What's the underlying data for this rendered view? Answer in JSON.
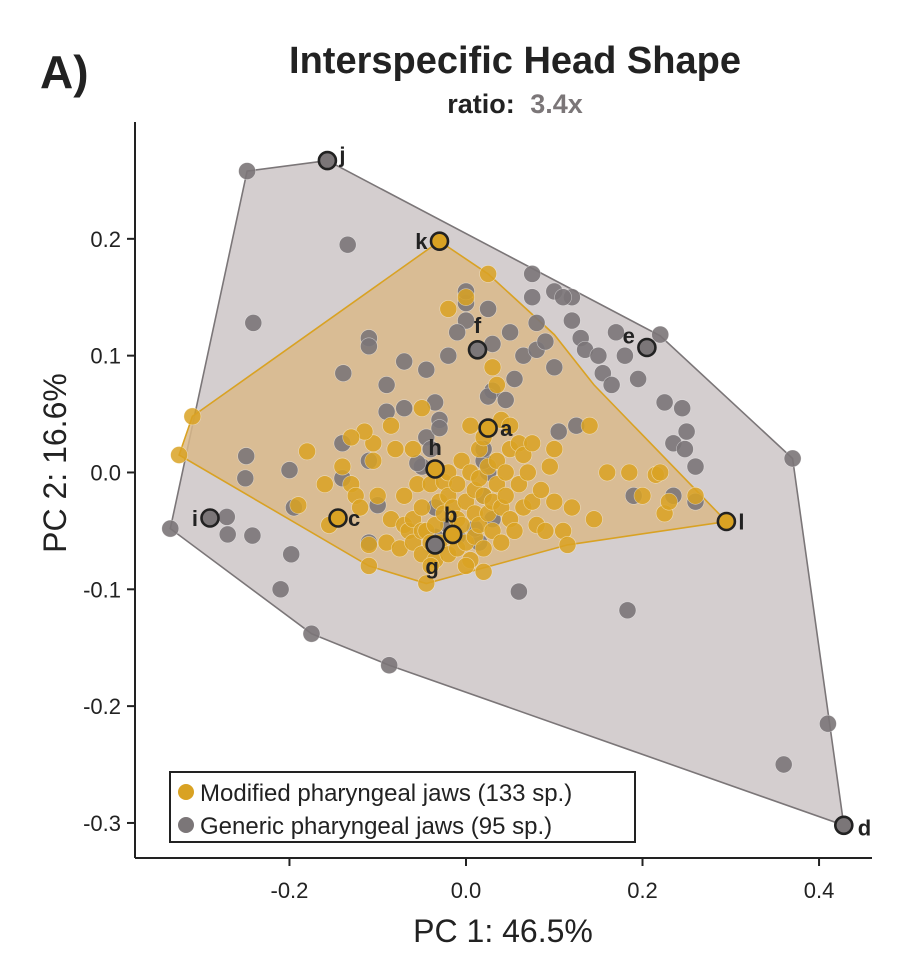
{
  "panel_label": "A)",
  "title": "Interspecific Head Shape",
  "subtitle": {
    "prefix": "ratio:",
    "value": "3.4x"
  },
  "colors": {
    "modified": "#D9A223",
    "generic": "#7B7678",
    "generic_hull_fill": "#D4CECF",
    "modified_hull_fill": "#D9B98A",
    "axis": "#222222"
  },
  "chart_data": {
    "type": "scatter",
    "xlabel": "PC 1: 46.5%",
    "ylabel": "PC 2: 16.6%",
    "xlim": [
      -0.375,
      0.46
    ],
    "ylim": [
      -0.33,
      0.3
    ],
    "xticks": [
      -0.2,
      0.0,
      0.2,
      0.4
    ],
    "xtick_labels": [
      "-0.2",
      "0.0",
      "0.2",
      "0.4"
    ],
    "yticks": [
      -0.3,
      -0.2,
      -0.1,
      0.0,
      0.1,
      0.2
    ],
    "ytick_labels": [
      "-0.3",
      "-0.2",
      "-0.1",
      "0.0",
      "0.1",
      "0.2"
    ],
    "legend": {
      "placement": "bottom-left",
      "entries": [
        {
          "label": "Modified pharyngeal jaws (133 sp.)",
          "series": "modified"
        },
        {
          "label": "Generic pharyngeal jaws (95 sp.)",
          "series": "generic"
        }
      ]
    },
    "series": [
      {
        "name": "Generic pharyngeal jaws (95 sp.)",
        "key": "generic",
        "hull": [
          [
            -0.335,
            -0.048
          ],
          [
            -0.248,
            0.258
          ],
          [
            -0.157,
            0.267
          ],
          [
            0.22,
            0.117
          ],
          [
            0.37,
            0.012
          ],
          [
            0.428,
            -0.302
          ],
          [
            -0.087,
            -0.165
          ],
          [
            -0.175,
            -0.138
          ]
        ],
        "points": [
          [
            -0.248,
            0.258
          ],
          [
            -0.157,
            0.267
          ],
          [
            -0.134,
            0.195
          ],
          [
            -0.241,
            0.128
          ],
          [
            -0.139,
            0.085
          ],
          [
            -0.335,
            -0.048
          ],
          [
            -0.271,
            -0.038
          ],
          [
            -0.27,
            -0.053
          ],
          [
            -0.242,
            -0.054
          ],
          [
            -0.25,
            -0.005
          ],
          [
            -0.249,
            0.014
          ],
          [
            -0.2,
            0.002
          ],
          [
            -0.195,
            -0.03
          ],
          [
            -0.198,
            -0.07
          ],
          [
            -0.21,
            -0.1
          ],
          [
            -0.175,
            -0.138
          ],
          [
            -0.087,
            -0.165
          ],
          [
            -0.11,
            -0.06
          ],
          [
            -0.1,
            -0.028
          ],
          [
            -0.11,
            0.01
          ],
          [
            -0.14,
            -0.005
          ],
          [
            -0.14,
            0.025
          ],
          [
            -0.11,
            0.115
          ],
          [
            -0.11,
            0.108
          ],
          [
            -0.07,
            0.095
          ],
          [
            -0.09,
            0.075
          ],
          [
            -0.07,
            0.055
          ],
          [
            -0.09,
            0.052
          ],
          [
            -0.045,
            0.088
          ],
          [
            -0.02,
            0.1
          ],
          [
            0.0,
            0.13
          ],
          [
            -0.01,
            0.12
          ],
          [
            0.0,
            0.145
          ],
          [
            0.0,
            0.155
          ],
          [
            0.025,
            0.14
          ],
          [
            0.03,
            0.11
          ],
          [
            0.05,
            0.12
          ],
          [
            0.055,
            0.08
          ],
          [
            0.03,
            0.07
          ],
          [
            0.025,
            0.065
          ],
          [
            0.045,
            0.062
          ],
          [
            0.065,
            0.1
          ],
          [
            0.08,
            0.105
          ],
          [
            0.075,
            0.15
          ],
          [
            0.075,
            0.17
          ],
          [
            0.08,
            0.128
          ],
          [
            0.09,
            0.112
          ],
          [
            0.1,
            0.09
          ],
          [
            0.1,
            0.155
          ],
          [
            0.12,
            0.15
          ],
          [
            0.11,
            0.15
          ],
          [
            0.13,
            0.115
          ],
          [
            0.12,
            0.13
          ],
          [
            0.135,
            0.105
          ],
          [
            0.155,
            0.085
          ],
          [
            0.15,
            0.1
          ],
          [
            0.165,
            0.075
          ],
          [
            0.18,
            0.1
          ],
          [
            0.17,
            0.12
          ],
          [
            0.195,
            0.08
          ],
          [
            0.22,
            0.118
          ],
          [
            0.225,
            0.06
          ],
          [
            0.245,
            0.055
          ],
          [
            0.25,
            0.035
          ],
          [
            0.235,
            0.025
          ],
          [
            0.248,
            0.02
          ],
          [
            0.26,
            0.005
          ],
          [
            0.26,
            -0.025
          ],
          [
            0.235,
            -0.02
          ],
          [
            0.19,
            -0.02
          ],
          [
            0.183,
            -0.118
          ],
          [
            0.125,
            0.04
          ],
          [
            0.105,
            0.035
          ],
          [
            0.37,
            0.012
          ],
          [
            0.41,
            -0.215
          ],
          [
            0.36,
            -0.25
          ],
          [
            0.06,
            -0.102
          ],
          [
            0.03,
            -0.04
          ],
          [
            0.015,
            -0.06
          ],
          [
            -0.035,
            -0.03
          ],
          [
            -0.05,
            0.005
          ],
          [
            -0.055,
            0.008
          ],
          [
            -0.045,
            0.03
          ],
          [
            -0.03,
            0.045
          ],
          [
            -0.035,
            0.06
          ],
          [
            -0.03,
            0.038
          ],
          [
            -0.04,
            0.02
          ],
          [
            -0.035,
            -0.055
          ],
          [
            -0.02,
            -0.045
          ],
          [
            -0.01,
            -0.055
          ],
          [
            0.01,
            -0.048
          ],
          [
            0.02,
            -0.02
          ],
          [
            0.025,
            0.0
          ],
          [
            0.02,
            0.01
          ],
          [
            0.02,
            0.02
          ]
        ]
      },
      {
        "name": "Modified pharyngeal jaws (133 sp.)",
        "key": "modified",
        "hull": [
          [
            -0.325,
            0.015
          ],
          [
            -0.31,
            0.048
          ],
          [
            -0.03,
            0.198
          ],
          [
            0.025,
            0.17
          ],
          [
            0.1,
            0.118
          ],
          [
            0.145,
            0.075
          ],
          [
            0.295,
            -0.042
          ],
          [
            0.115,
            -0.062
          ],
          [
            -0.045,
            -0.095
          ],
          [
            -0.11,
            -0.08
          ]
        ],
        "points": [
          [
            -0.325,
            0.015
          ],
          [
            -0.31,
            0.048
          ],
          [
            -0.19,
            -0.028
          ],
          [
            -0.18,
            0.018
          ],
          [
            -0.155,
            -0.045
          ],
          [
            -0.14,
            0.005
          ],
          [
            -0.13,
            -0.01
          ],
          [
            -0.125,
            -0.02
          ],
          [
            -0.12,
            -0.03
          ],
          [
            -0.11,
            -0.08
          ],
          [
            -0.11,
            -0.062
          ],
          [
            -0.1,
            -0.02
          ],
          [
            -0.105,
            0.01
          ],
          [
            -0.105,
            0.025
          ],
          [
            -0.115,
            0.035
          ],
          [
            -0.09,
            -0.06
          ],
          [
            -0.085,
            -0.04
          ],
          [
            -0.075,
            -0.065
          ],
          [
            -0.07,
            -0.045
          ],
          [
            -0.07,
            -0.02
          ],
          [
            -0.065,
            -0.05
          ],
          [
            -0.06,
            -0.04
          ],
          [
            -0.06,
            -0.06
          ],
          [
            -0.055,
            -0.01
          ],
          [
            -0.05,
            -0.07
          ],
          [
            -0.05,
            -0.05
          ],
          [
            -0.05,
            -0.03
          ],
          [
            -0.045,
            -0.095
          ],
          [
            -0.045,
            -0.05
          ],
          [
            -0.04,
            -0.01
          ],
          [
            -0.04,
            -0.06
          ],
          [
            -0.035,
            -0.045
          ],
          [
            -0.035,
            -0.075
          ],
          [
            -0.03,
            -0.025
          ],
          [
            -0.03,
            -0.06
          ],
          [
            -0.025,
            -0.035
          ],
          [
            -0.025,
            -0.008
          ],
          [
            -0.02,
            0.0
          ],
          [
            -0.02,
            -0.02
          ],
          [
            -0.02,
            -0.07
          ],
          [
            -0.015,
            -0.055
          ],
          [
            -0.015,
            -0.03
          ],
          [
            -0.01,
            -0.01
          ],
          [
            -0.01,
            -0.04
          ],
          [
            -0.01,
            -0.065
          ],
          [
            -0.005,
            0.01
          ],
          [
            -0.005,
            -0.045
          ],
          [
            0.0,
            -0.025
          ],
          [
            0.0,
            -0.06
          ],
          [
            0.005,
            0.0
          ],
          [
            0.005,
            -0.075
          ],
          [
            0.01,
            -0.015
          ],
          [
            0.01,
            -0.035
          ],
          [
            0.01,
            -0.055
          ],
          [
            0.015,
            0.02
          ],
          [
            0.015,
            -0.005
          ],
          [
            0.015,
            -0.045
          ],
          [
            0.02,
            -0.065
          ],
          [
            0.02,
            -0.02
          ],
          [
            0.025,
            0.005
          ],
          [
            0.025,
            -0.035
          ],
          [
            0.03,
            -0.025
          ],
          [
            0.03,
            -0.05
          ],
          [
            0.035,
            0.01
          ],
          [
            0.035,
            -0.01
          ],
          [
            0.04,
            -0.03
          ],
          [
            0.04,
            -0.06
          ],
          [
            0.045,
            0.0
          ],
          [
            0.045,
            -0.02
          ],
          [
            0.05,
            -0.04
          ],
          [
            0.05,
            0.02
          ],
          [
            0.055,
            -0.05
          ],
          [
            0.06,
            -0.01
          ],
          [
            0.065,
            -0.03
          ],
          [
            0.07,
            0.0
          ],
          [
            0.075,
            -0.025
          ],
          [
            0.08,
            -0.045
          ],
          [
            0.085,
            -0.015
          ],
          [
            0.09,
            -0.05
          ],
          [
            0.095,
            0.005
          ],
          [
            0.1,
            -0.025
          ],
          [
            0.11,
            -0.05
          ],
          [
            0.115,
            -0.062
          ],
          [
            0.12,
            -0.03
          ],
          [
            0.14,
            0.04
          ],
          [
            0.145,
            -0.04
          ],
          [
            0.16,
            0.0
          ],
          [
            0.185,
            0.0
          ],
          [
            0.2,
            -0.02
          ],
          [
            0.215,
            -0.002
          ],
          [
            0.22,
            0.0
          ],
          [
            0.225,
            -0.035
          ],
          [
            0.23,
            -0.025
          ],
          [
            0.26,
            -0.02
          ],
          [
            0.295,
            -0.042
          ],
          [
            -0.03,
            0.198
          ],
          [
            -0.02,
            0.14
          ],
          [
            0.0,
            0.15
          ],
          [
            0.025,
            0.17
          ],
          [
            0.03,
            0.09
          ],
          [
            0.035,
            0.075
          ],
          [
            0.04,
            0.045
          ],
          [
            0.05,
            0.04
          ],
          [
            0.06,
            0.025
          ],
          [
            0.1,
            0.02
          ],
          [
            -0.13,
            0.03
          ],
          [
            -0.085,
            0.04
          ],
          [
            -0.08,
            0.02
          ],
          [
            -0.16,
            -0.01
          ],
          [
            0.005,
            0.04
          ],
          [
            0.02,
            0.03
          ],
          [
            -0.06,
            0.02
          ],
          [
            -0.04,
            -0.08
          ],
          [
            0.0,
            -0.08
          ],
          [
            0.02,
            -0.085
          ],
          [
            -0.05,
            0.055
          ],
          [
            0.065,
            0.015
          ],
          [
            0.075,
            0.025
          ]
        ]
      }
    ],
    "labeled_points": [
      {
        "label": "a",
        "series": "modified",
        "x": 0.025,
        "y": 0.038
      },
      {
        "label": "b",
        "series": "modified",
        "x": -0.015,
        "y": -0.053
      },
      {
        "label": "c",
        "series": "modified",
        "x": -0.145,
        "y": -0.039
      },
      {
        "label": "d",
        "series": "generic",
        "x": 0.428,
        "y": -0.302
      },
      {
        "label": "e",
        "series": "generic",
        "x": 0.205,
        "y": 0.107
      },
      {
        "label": "f",
        "series": "generic",
        "x": 0.013,
        "y": 0.105
      },
      {
        "label": "g",
        "series": "generic",
        "x": -0.035,
        "y": -0.062
      },
      {
        "label": "h",
        "series": "modified",
        "x": -0.035,
        "y": 0.003
      },
      {
        "label": "i",
        "series": "generic",
        "x": -0.29,
        "y": -0.039
      },
      {
        "label": "j",
        "series": "generic",
        "x": -0.157,
        "y": 0.267
      },
      {
        "label": "k",
        "series": "modified",
        "x": -0.03,
        "y": 0.198
      },
      {
        "label": "l",
        "series": "modified",
        "x": 0.295,
        "y": -0.042
      }
    ]
  }
}
